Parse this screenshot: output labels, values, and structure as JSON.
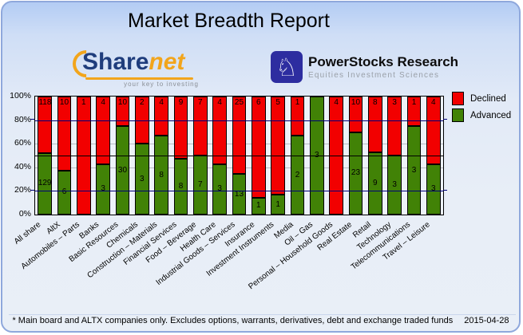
{
  "title": "Market Breadth Report",
  "logos": {
    "sharenet": {
      "name_part1": "Share",
      "name_part2": "net",
      "tagline": "your key to investing"
    },
    "powerstocks": {
      "icon": "knight-chess-icon",
      "name": "PowerStocks  Research",
      "subtitle": "Equities Investment Sciences"
    }
  },
  "chart_data": {
    "type": "bar",
    "stacked": true,
    "normalized_to_percent": true,
    "categories": [
      "All share",
      "AltX",
      "Automobiles – Parts",
      "Banks",
      "Basic Resources",
      "Chemicals",
      "Construction – Materials",
      "Financial Services",
      "Food – Beverage",
      "Health Care",
      "Industrial Goods – Services",
      "Insurance",
      "Investment Instruments",
      "Media",
      "Oil – Gas",
      "Personal – Household Goods",
      "Real Estate",
      "Retail",
      "Technology",
      "Telecommunications",
      "Travel – Leisure"
    ],
    "series": [
      {
        "name": "Declined",
        "color": "#f20000",
        "values": [
          118,
          10,
          1,
          4,
          10,
          2,
          4,
          9,
          7,
          4,
          25,
          6,
          5,
          1,
          0,
          4,
          10,
          8,
          3,
          1,
          4
        ]
      },
      {
        "name": "Advanced",
        "color": "#418206",
        "values": [
          129,
          6,
          0,
          3,
          30,
          3,
          8,
          8,
          7,
          3,
          13,
          1,
          1,
          2,
          3,
          0,
          23,
          9,
          3,
          3,
          3
        ]
      }
    ],
    "y_axis": {
      "ticks": [
        "100%",
        "80%",
        "60%",
        "40%",
        "20%",
        "0%"
      ],
      "min": 0,
      "max": 100
    },
    "reference_line_pct": 50,
    "legend_position": "top-right",
    "grid": true
  },
  "footer": {
    "note": "* Main board and ALTX companies only. Excludes options, warrants, derivatives, debt and exchange traded funds",
    "date": "2015-04-28"
  }
}
